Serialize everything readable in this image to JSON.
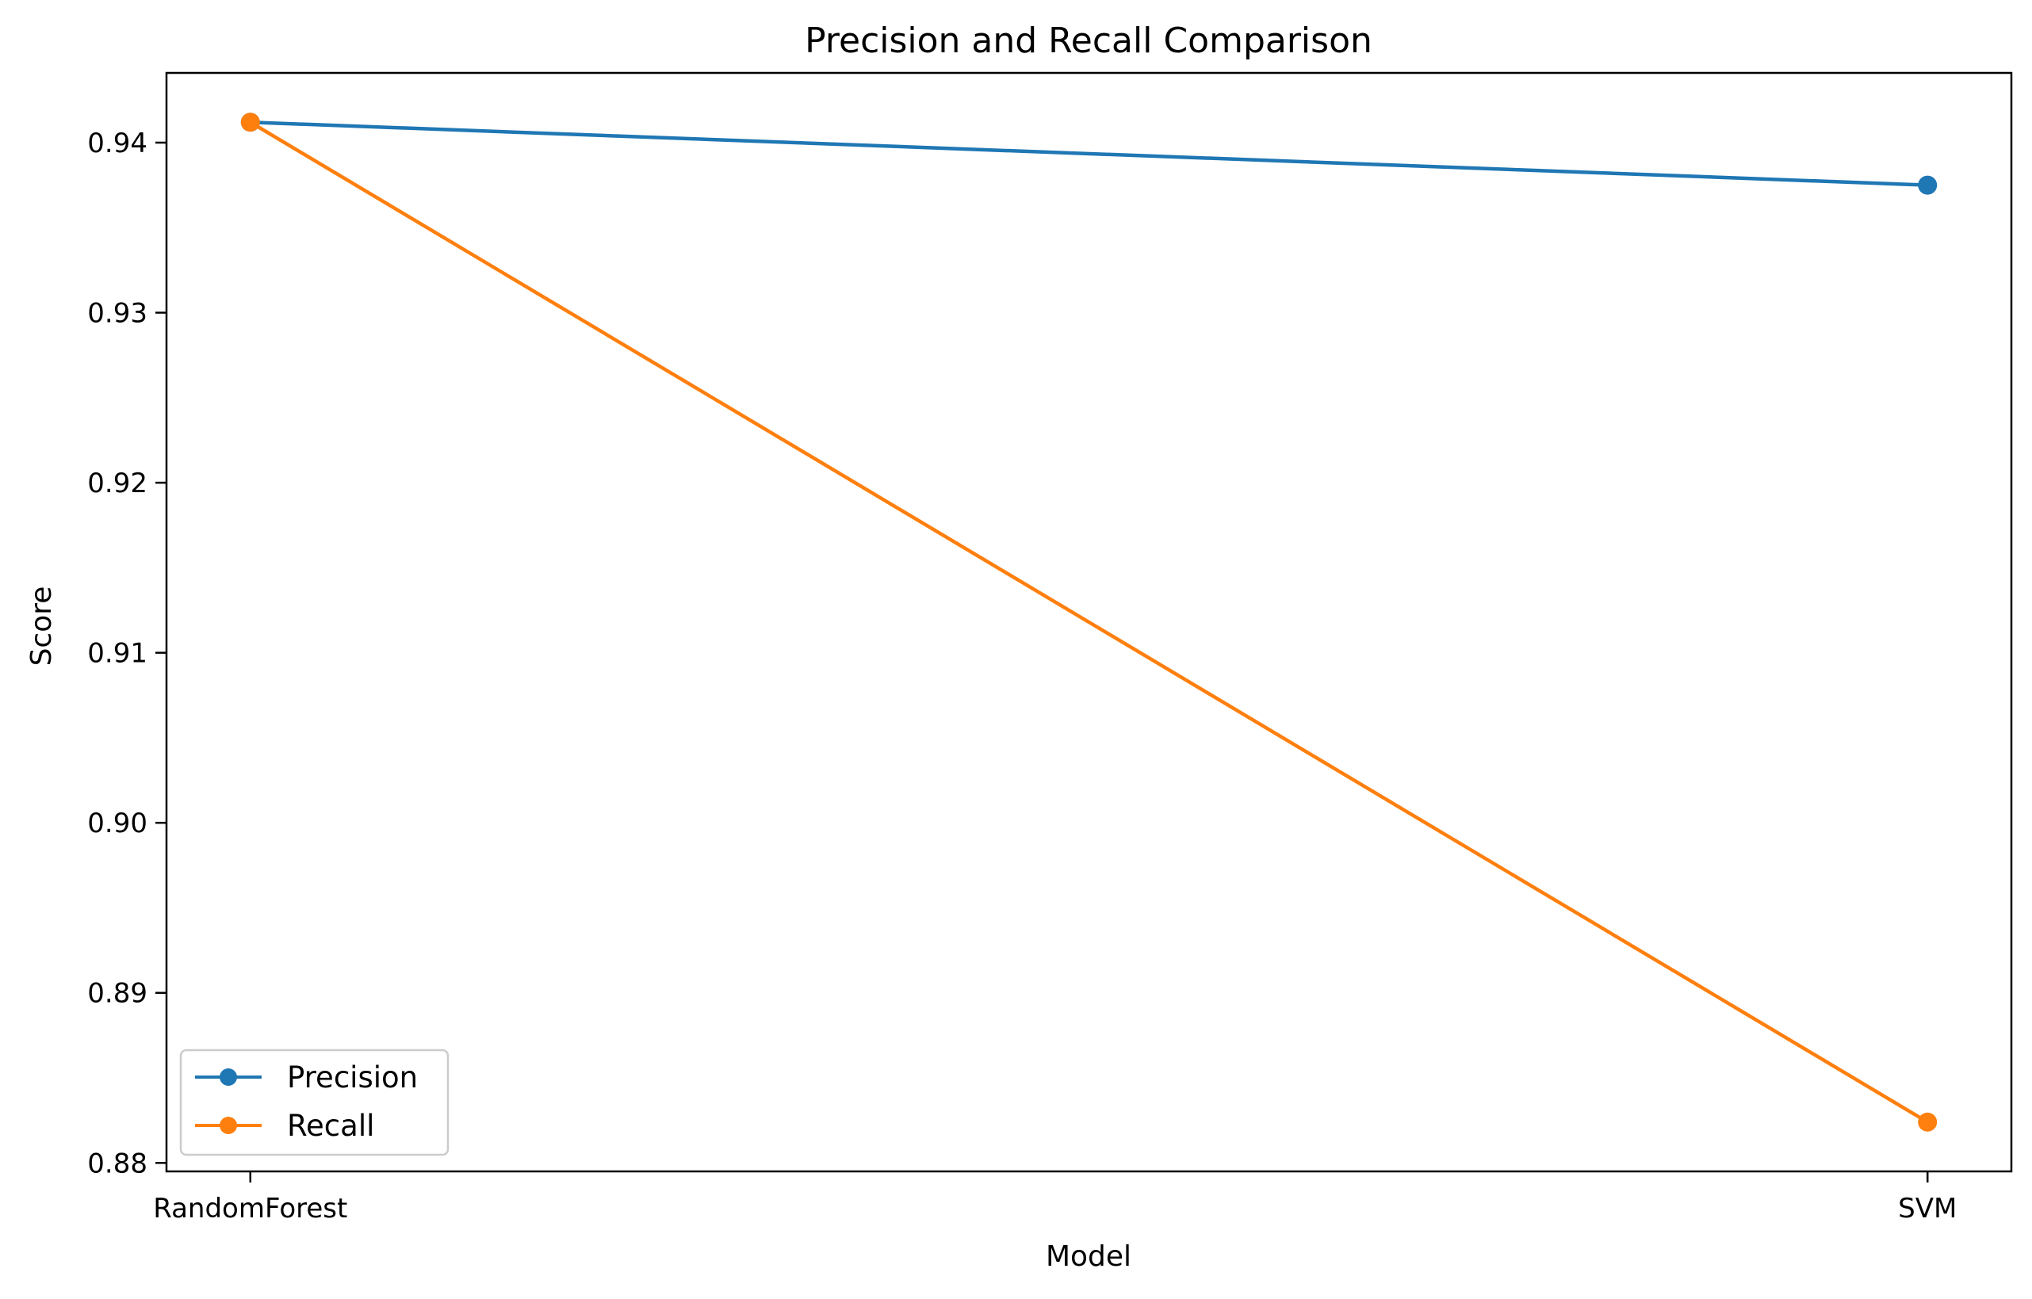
{
  "chart_data": {
    "type": "line",
    "title": "Precision and Recall Comparison",
    "xlabel": "Model",
    "ylabel": "Score",
    "categories": [
      "RandomForest",
      "SVM"
    ],
    "series": [
      {
        "name": "Precision",
        "color": "#1f77b4",
        "values": [
          0.9412,
          0.9375
        ]
      },
      {
        "name": "Recall",
        "color": "#ff7f0e",
        "values": [
          0.9412,
          0.8824
        ]
      }
    ],
    "ylim": [
      0.8795,
      0.9441
    ],
    "yticks": [
      0.88,
      0.89,
      0.9,
      0.91,
      0.92,
      0.93,
      0.94
    ],
    "ytick_labels": [
      "0.88",
      "0.89",
      "0.90",
      "0.91",
      "0.92",
      "0.93",
      "0.94"
    ],
    "grid": false,
    "legend_position": "lower-left",
    "marker": "circle"
  }
}
